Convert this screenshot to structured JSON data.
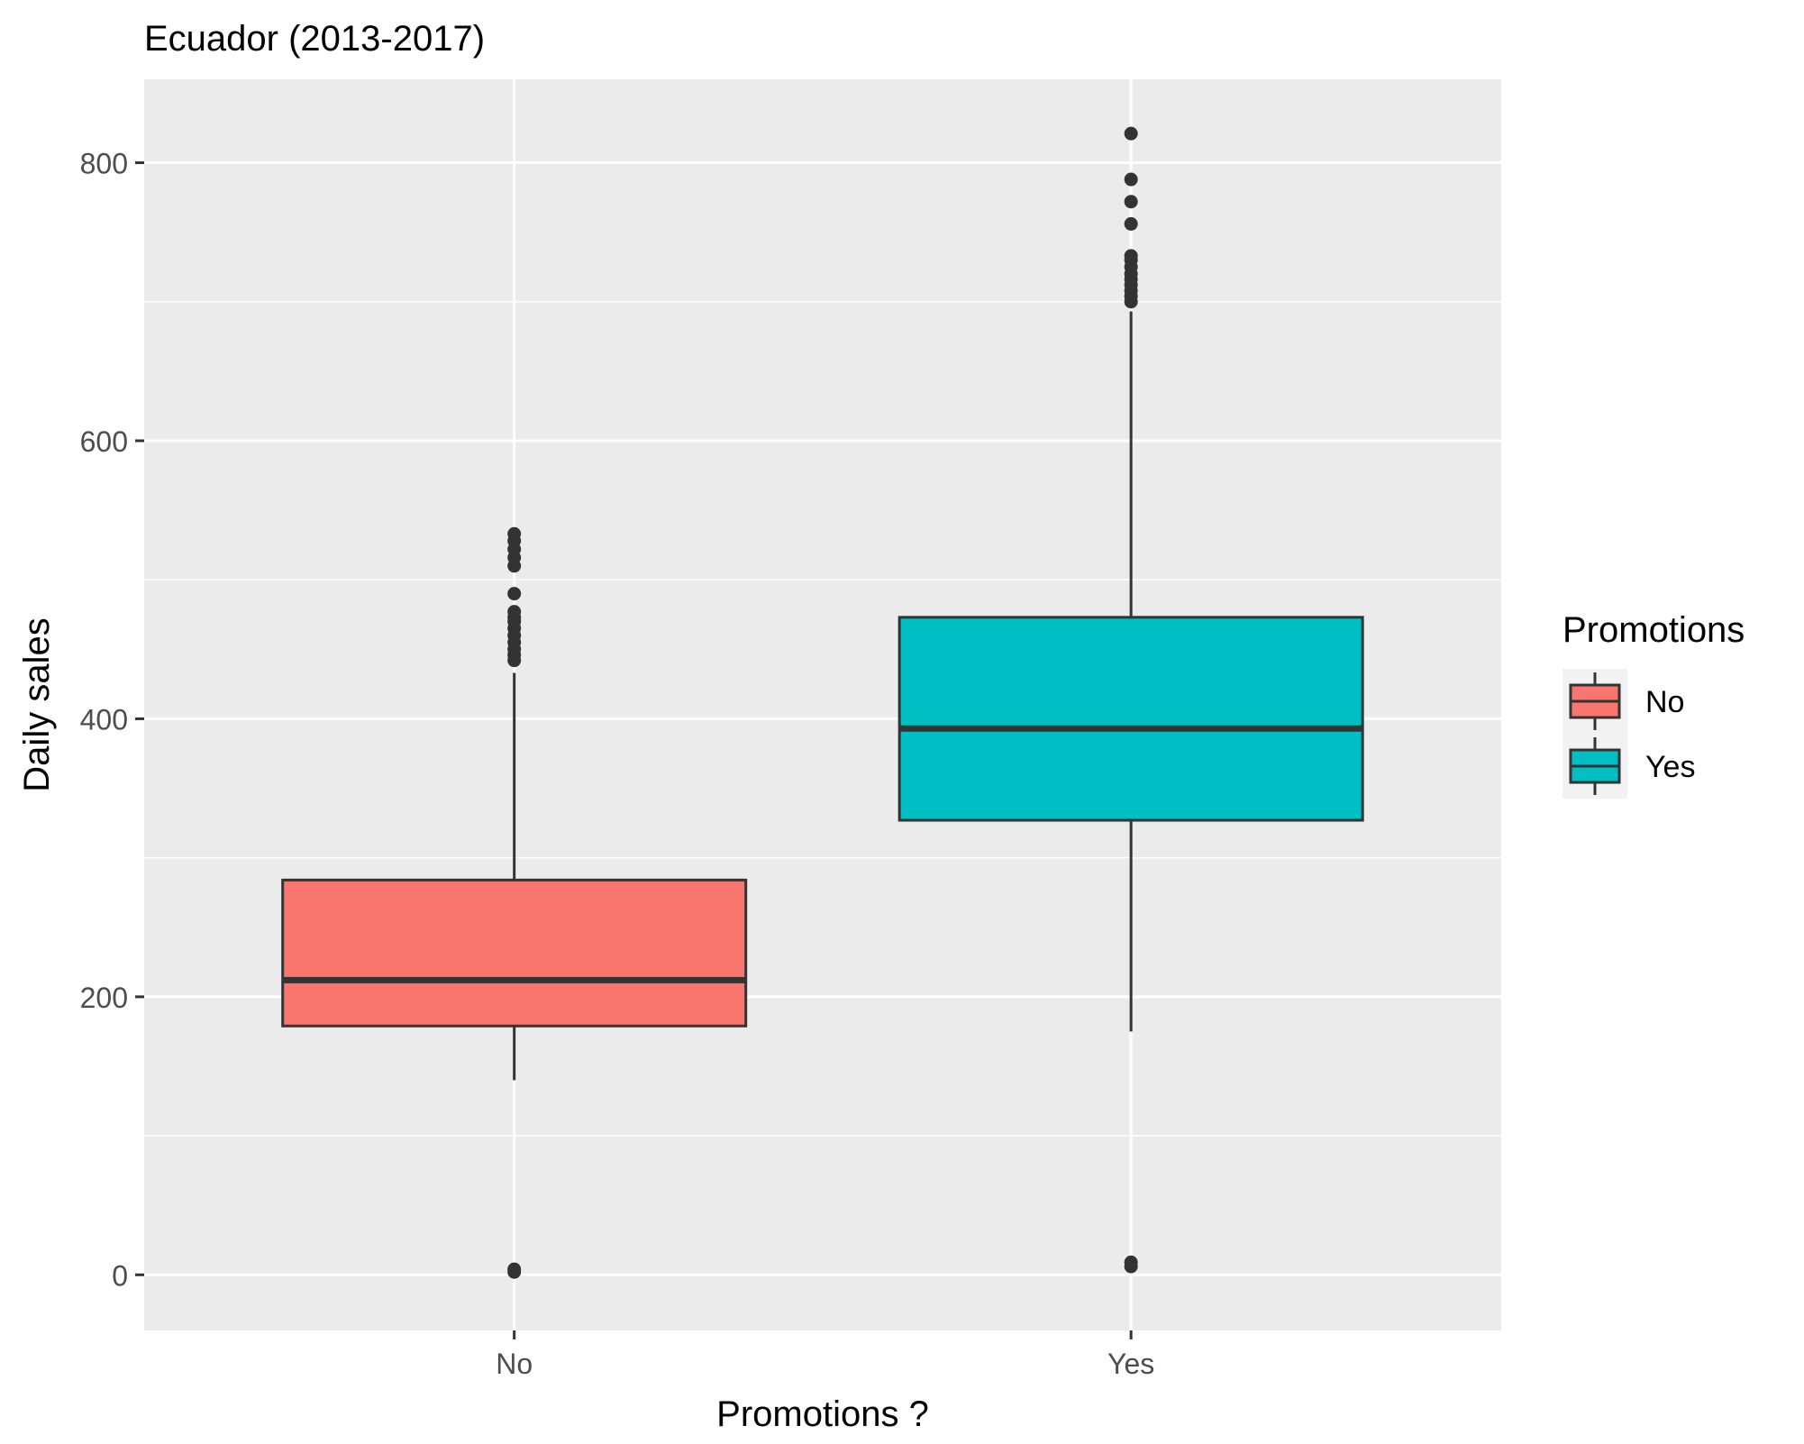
{
  "chart_data": {
    "type": "boxplot",
    "title": "Ecuador (2013-2017)",
    "xlabel": "Promotions ?",
    "ylabel": "Daily sales",
    "categories": [
      "No",
      "Yes"
    ],
    "ylim": [
      -40,
      860
    ],
    "yticks": [
      0,
      200,
      400,
      600,
      800
    ],
    "grid": true,
    "legend": {
      "title": "Promotions",
      "position": "right",
      "entries": [
        "No",
        "Yes"
      ]
    },
    "colors": {
      "No": "#F8766D",
      "Yes": "#00BFC4",
      "panel": "#EBEBEB",
      "grid": "#FFFFFF",
      "outline": "#333333"
    },
    "boxes": [
      {
        "category": "No",
        "whisker_low": 140,
        "q1": 179,
        "median": 212,
        "q3": 284,
        "whisker_high": 433,
        "outliers": [
          2,
          4,
          442,
          446,
          450,
          455,
          460,
          465,
          470,
          473,
          477,
          490,
          510,
          516,
          522,
          528,
          533
        ]
      },
      {
        "category": "Yes",
        "whisker_low": 175,
        "q1": 327,
        "median": 393,
        "q3": 473,
        "whisker_high": 693,
        "outliers": [
          6,
          9,
          700,
          704,
          708,
          712,
          716,
          720,
          725,
          730,
          733,
          756,
          772,
          788,
          821
        ]
      }
    ]
  }
}
